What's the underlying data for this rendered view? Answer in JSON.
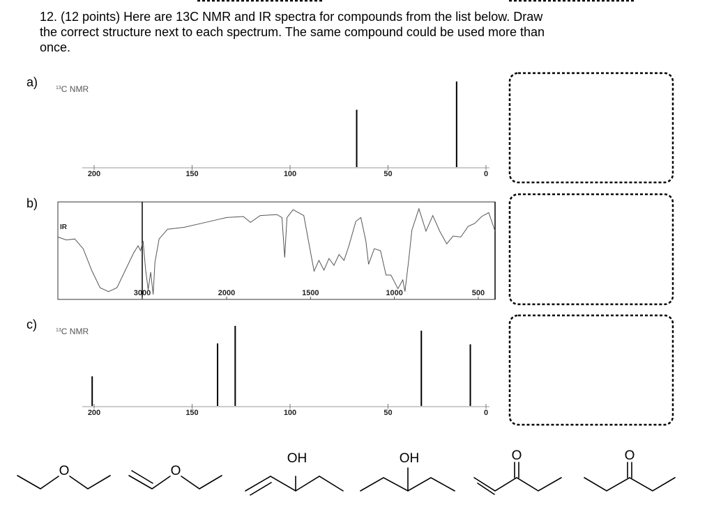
{
  "question": {
    "lines": [
      "12. (12 points) Here are 13C NMR and IR spectra for compounds from the list below.  Draw",
      "the correct structure next to each spectrum.  The same compound could be used more than",
      "once."
    ]
  },
  "spectra": [
    {
      "label": "a)",
      "type": "nmr",
      "title_superscript": "13",
      "title": "C NMR",
      "xlim": [
        200,
        0
      ],
      "xticks": [
        200,
        150,
        100,
        50,
        0
      ],
      "ylim": [
        0,
        1
      ],
      "peaks": [
        {
          "ppm": 66,
          "height": 0.67
        },
        {
          "ppm": 15,
          "height": 1.0
        }
      ]
    },
    {
      "label": "b)",
      "type": "ir",
      "title": "IR",
      "xlim": [
        4000,
        400
      ],
      "scale_break": 2000,
      "xticks": [
        3000,
        2000,
        1500,
        1000,
        500
      ],
      "ylim": [
        0,
        100
      ],
      "wavenumbers": [
        4000,
        3900,
        3800,
        3700,
        3600,
        3500,
        3400,
        3300,
        3200,
        3100,
        3050,
        3020,
        2990,
        2960,
        2930,
        2900,
        2870,
        2850,
        2800,
        2700,
        2500,
        2300,
        2100,
        2000,
        1900,
        1858,
        1800,
        1700,
        1670,
        1654,
        1640,
        1604,
        1540,
        1479,
        1450,
        1420,
        1390,
        1360,
        1330,
        1300,
        1271,
        1230,
        1200,
        1170,
        1154,
        1120,
        1083,
        1050,
        1021,
        979,
        950,
        937,
        915,
        896,
        854,
        812,
        771,
        730,
        688,
        650,
        604,
        560,
        521,
        480,
        438,
        400
      ],
      "transmittance": [
        64,
        61,
        62,
        52,
        30,
        12,
        8,
        12,
        30,
        48,
        55,
        50,
        60,
        30,
        10,
        28,
        5,
        38,
        62,
        72,
        74,
        78,
        82,
        84,
        85,
        79,
        86,
        87,
        84,
        43,
        84,
        92,
        86,
        29,
        40,
        30,
        42,
        35,
        46,
        40,
        55,
        80,
        84,
        60,
        36,
        52,
        50,
        25,
        25,
        11,
        20,
        8,
        40,
        71,
        93,
        70,
        86,
        70,
        57,
        65,
        64,
        75,
        78,
        85,
        89,
        70
      ]
    },
    {
      "label": "c)",
      "type": "nmr",
      "title_superscript": "13",
      "title": "C NMR",
      "xlim": [
        200,
        0
      ],
      "xticks": [
        200,
        150,
        100,
        50,
        0
      ],
      "ylim": [
        0,
        1
      ],
      "peaks": [
        {
          "ppm": 201,
          "height": 0.37
        },
        {
          "ppm": 137,
          "height": 0.78
        },
        {
          "ppm": 128,
          "height": 1.0
        },
        {
          "ppm": 33,
          "height": 0.94
        },
        {
          "ppm": 8,
          "height": 0.77
        }
      ]
    }
  ],
  "compounds": [
    {
      "atom": "O"
    },
    {
      "atom": "O"
    },
    {
      "atom": "OH"
    },
    {
      "atom": "OH"
    },
    {
      "atom": "O"
    },
    {
      "atom": "O"
    }
  ]
}
